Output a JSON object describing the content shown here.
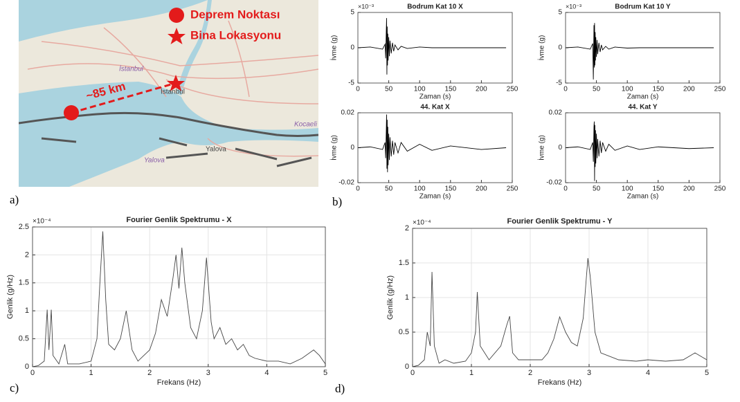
{
  "map": {
    "legend": [
      "Deprem Noktası",
      "Bina Lokasyonu"
    ],
    "distance_label": "~85 km",
    "place_labels": [
      "İstanbul",
      "İstanbul",
      "Yalova",
      "Yalova",
      "Kocaeli"
    ]
  },
  "panel_labels": [
    "a)",
    "b)",
    "c)",
    "d)"
  ],
  "chart_data": [
    {
      "type": "line",
      "title": "Bodrum Kat 10 X",
      "x_label": "Zaman (s)",
      "y_label": "İvme (g)",
      "y_scale_label": "×10⁻³",
      "xlim": [
        0,
        250
      ],
      "xticks": [
        0,
        50,
        100,
        150,
        200,
        250
      ],
      "ylim": [
        -5,
        5
      ],
      "yticks": [
        -5,
        0,
        5
      ],
      "grid": false,
      "series": [
        {
          "color": "#000000",
          "x": [
            0,
            20,
            40,
            44,
            45,
            46,
            46.5,
            47,
            47.5,
            48,
            48.5,
            49,
            50,
            51,
            52,
            54,
            56,
            58,
            60,
            65,
            70,
            80,
            100,
            120,
            150,
            200,
            240
          ],
          "values": [
            0,
            0.1,
            -0.2,
            0.5,
            -1.5,
            2.5,
            4.2,
            -3.8,
            3,
            -2.5,
            2,
            -1.8,
            1.5,
            -1.2,
            1,
            -0.8,
            0.7,
            -0.5,
            0.4,
            -0.3,
            0.2,
            -0.1,
            0.1,
            0,
            0,
            0,
            0
          ]
        }
      ]
    },
    {
      "type": "line",
      "title": "Bodrum Kat 10 Y",
      "x_label": "Zaman (s)",
      "y_label": "İvme (g)",
      "y_scale_label": "×10⁻³",
      "xlim": [
        0,
        250
      ],
      "xticks": [
        0,
        50,
        100,
        150,
        200,
        250
      ],
      "ylim": [
        -5,
        5
      ],
      "yticks": [
        -5,
        0,
        5
      ],
      "grid": false,
      "series": [
        {
          "color": "#000000",
          "x": [
            0,
            20,
            40,
            44,
            45,
            46,
            46.5,
            47,
            47.5,
            48,
            48.5,
            49,
            50,
            51,
            52,
            54,
            56,
            58,
            60,
            65,
            70,
            80,
            100,
            120,
            150,
            200,
            240
          ],
          "values": [
            0,
            0.1,
            -0.2,
            0.6,
            -4.5,
            3.2,
            -2.8,
            3.5,
            -2.5,
            2.2,
            -1.8,
            1.5,
            -1.3,
            1.1,
            -0.9,
            0.7,
            -0.6,
            0.4,
            -0.3,
            0.2,
            -0.2,
            0.1,
            -0.05,
            0,
            0,
            0,
            0
          ]
        }
      ]
    },
    {
      "type": "line",
      "title": "44. Kat X",
      "x_label": "Zaman (s)",
      "y_label": "İvme (g)",
      "xlim": [
        0,
        250
      ],
      "xticks": [
        0,
        50,
        100,
        150,
        200,
        250
      ],
      "ylim": [
        -0.02,
        0.02
      ],
      "yticks": [
        -0.02,
        0,
        0.02
      ],
      "grid": false,
      "series": [
        {
          "color": "#000000",
          "x": [
            0,
            20,
            40,
            44,
            45,
            46,
            46.5,
            47,
            47.5,
            48,
            48.5,
            49,
            50,
            51,
            52,
            54,
            56,
            58,
            60,
            65,
            70,
            80,
            100,
            120,
            150,
            200,
            240
          ],
          "values": [
            0,
            0.0005,
            -0.001,
            0.003,
            -0.006,
            0.01,
            0.019,
            -0.012,
            0.016,
            -0.014,
            0.012,
            -0.01,
            0.008,
            -0.007,
            0.006,
            -0.005,
            0.004,
            -0.004,
            0.003,
            -0.003,
            0.003,
            -0.002,
            0.002,
            -0.0015,
            0.001,
            -0.001,
            0
          ]
        }
      ]
    },
    {
      "type": "line",
      "title": "44. Kat Y",
      "x_label": "Zaman (s)",
      "y_label": "İvme (g)",
      "xlim": [
        0,
        250
      ],
      "xticks": [
        0,
        50,
        100,
        150,
        200,
        250
      ],
      "ylim": [
        -0.02,
        0.02
      ],
      "yticks": [
        -0.02,
        0,
        0.02
      ],
      "grid": false,
      "series": [
        {
          "color": "#000000",
          "x": [
            0,
            20,
            40,
            44,
            45,
            46,
            46.5,
            47,
            47.5,
            48,
            48.5,
            49,
            50,
            51,
            52,
            54,
            56,
            58,
            60,
            65,
            70,
            80,
            100,
            120,
            150,
            200,
            240
          ],
          "values": [
            0,
            0.0005,
            -0.001,
            0.003,
            -0.008,
            0.012,
            0.015,
            -0.019,
            0.013,
            -0.011,
            0.01,
            -0.009,
            0.008,
            -0.006,
            0.005,
            -0.005,
            0.004,
            -0.003,
            0.003,
            -0.002,
            0.002,
            -0.0015,
            0.001,
            -0.001,
            0.0005,
            -0.0005,
            0
          ]
        }
      ]
    },
    {
      "type": "line",
      "title": "Fourier Genlik Spektrumu - X",
      "x_label": "Frekans (Hz)",
      "y_label": "Genlik (g/Hz)",
      "y_scale_label": "×10⁻⁴",
      "xlim": [
        0,
        5
      ],
      "xticks": [
        0,
        1,
        2,
        3,
        4,
        5
      ],
      "ylim": [
        0,
        2.5
      ],
      "yticks": [
        0,
        0.5,
        1,
        1.5,
        2,
        2.5
      ],
      "grid": true,
      "series": [
        {
          "color": "#444444",
          "x": [
            0,
            0.1,
            0.2,
            0.25,
            0.28,
            0.32,
            0.35,
            0.45,
            0.55,
            0.6,
            0.8,
            1.0,
            1.1,
            1.15,
            1.2,
            1.25,
            1.3,
            1.4,
            1.5,
            1.6,
            1.7,
            1.8,
            1.9,
            2.0,
            2.1,
            2.2,
            2.3,
            2.4,
            2.45,
            2.5,
            2.55,
            2.6,
            2.7,
            2.8,
            2.9,
            2.97,
            3.05,
            3.1,
            3.2,
            3.3,
            3.4,
            3.5,
            3.6,
            3.7,
            3.8,
            4.0,
            4.2,
            4.4,
            4.6,
            4.8,
            4.9,
            5.0
          ],
          "values": [
            0,
            0.02,
            0.1,
            1.02,
            0.3,
            1.02,
            0.2,
            0.05,
            0.4,
            0.05,
            0.05,
            0.1,
            0.5,
            1.5,
            2.42,
            1.2,
            0.4,
            0.3,
            0.5,
            1.0,
            0.3,
            0.1,
            0.2,
            0.3,
            0.6,
            1.2,
            0.9,
            1.6,
            2.0,
            1.4,
            2.13,
            1.5,
            0.7,
            0.5,
            1.0,
            1.95,
            0.8,
            0.5,
            0.7,
            0.4,
            0.5,
            0.3,
            0.4,
            0.2,
            0.15,
            0.1,
            0.1,
            0.05,
            0.15,
            0.3,
            0.2,
            0.05
          ]
        }
      ]
    },
    {
      "type": "line",
      "title": "Fourier Genlik Spektrumu - Y",
      "x_label": "Frekans (Hz)",
      "y_label": "Genlik (g/Hz)",
      "y_scale_label": "×10⁻⁴",
      "xlim": [
        0,
        5
      ],
      "xticks": [
        0,
        1,
        2,
        3,
        4,
        5
      ],
      "ylim": [
        0,
        2
      ],
      "yticks": [
        0,
        0.5,
        1,
        1.5,
        2
      ],
      "grid": true,
      "series": [
        {
          "color": "#444444",
          "x": [
            0,
            0.1,
            0.2,
            0.25,
            0.3,
            0.33,
            0.37,
            0.45,
            0.55,
            0.7,
            0.9,
            1.0,
            1.07,
            1.1,
            1.15,
            1.3,
            1.5,
            1.6,
            1.65,
            1.7,
            1.8,
            2.0,
            2.2,
            2.3,
            2.4,
            2.5,
            2.6,
            2.7,
            2.8,
            2.9,
            2.95,
            2.98,
            3.02,
            3.1,
            3.2,
            3.5,
            3.8,
            4.0,
            4.3,
            4.6,
            4.8,
            4.9,
            5.0
          ],
          "values": [
            0,
            0.02,
            0.1,
            0.5,
            0.3,
            1.37,
            0.3,
            0.05,
            0.1,
            0.05,
            0.08,
            0.2,
            0.5,
            1.08,
            0.3,
            0.1,
            0.3,
            0.6,
            0.73,
            0.2,
            0.1,
            0.1,
            0.1,
            0.2,
            0.4,
            0.72,
            0.5,
            0.35,
            0.3,
            0.7,
            1.25,
            1.57,
            1.3,
            0.5,
            0.2,
            0.1,
            0.08,
            0.1,
            0.08,
            0.1,
            0.2,
            0.15,
            0.1
          ]
        }
      ]
    }
  ]
}
